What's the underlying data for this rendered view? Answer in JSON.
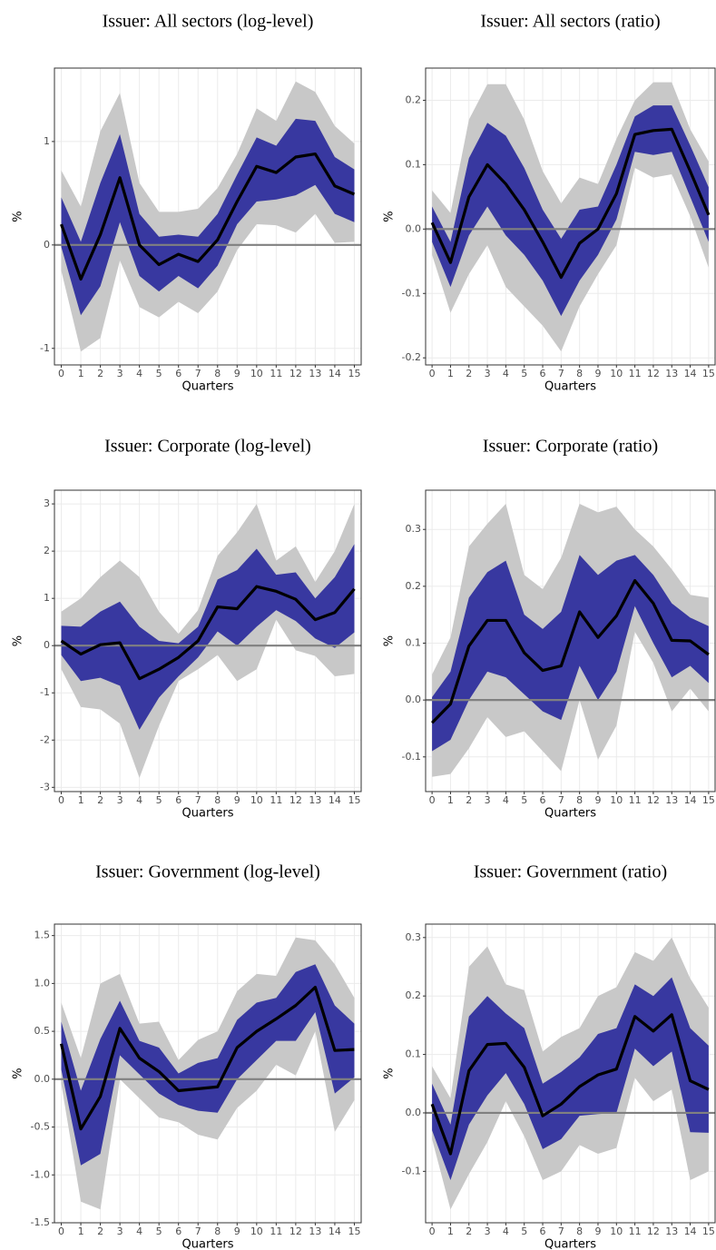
{
  "chart_data": [
    {
      "type": "line",
      "title": "Issuer:  All sectors (log-level)",
      "xlabel": "Quarters",
      "ylabel": "%",
      "x": [
        0,
        1,
        2,
        3,
        4,
        5,
        6,
        7,
        8,
        9,
        10,
        11,
        12,
        13,
        14,
        15
      ],
      "xlim": [
        -0.35,
        15.35
      ],
      "xticks": [
        0,
        1,
        2,
        3,
        4,
        5,
        6,
        7,
        8,
        9,
        10,
        11,
        12,
        13,
        14,
        15
      ],
      "ylim": [
        -1.16,
        1.71
      ],
      "yticks": [
        -1,
        0,
        1
      ],
      "grid": true,
      "hline": 0,
      "hline_color": "#808080",
      "bands": [
        {
          "color": "#c8c8c8",
          "lower": [
            -0.25,
            -1.03,
            -0.9,
            -0.15,
            -0.6,
            -0.7,
            -0.55,
            -0.66,
            -0.45,
            -0.05,
            0.2,
            0.19,
            0.12,
            0.3,
            0.02,
            0.03
          ],
          "upper": [
            0.72,
            0.37,
            1.1,
            1.47,
            0.6,
            0.32,
            0.32,
            0.35,
            0.55,
            0.88,
            1.32,
            1.2,
            1.58,
            1.48,
            1.15,
            0.98
          ]
        },
        {
          "color": "#3838a0",
          "lower": [
            -0.02,
            -0.68,
            -0.4,
            0.22,
            -0.3,
            -0.45,
            -0.3,
            -0.42,
            -0.2,
            0.2,
            0.42,
            0.44,
            0.48,
            0.58,
            0.3,
            0.22
          ],
          "upper": [
            0.46,
            0.03,
            0.6,
            1.07,
            0.3,
            0.08,
            0.1,
            0.08,
            0.3,
            0.68,
            1.04,
            0.96,
            1.22,
            1.2,
            0.85,
            0.73
          ]
        }
      ],
      "series": [
        {
          "color": "#000000",
          "values": [
            0.2,
            -0.33,
            0.1,
            0.65,
            0.0,
            -0.19,
            -0.09,
            -0.16,
            0.05,
            0.42,
            0.76,
            0.7,
            0.85,
            0.88,
            0.57,
            0.49
          ]
        }
      ]
    },
    {
      "type": "line",
      "title": "Issuer:  All sectors (ratio)",
      "xlabel": "Quarters",
      "ylabel": "%",
      "x": [
        0,
        1,
        2,
        3,
        4,
        5,
        6,
        7,
        8,
        9,
        10,
        11,
        12,
        13,
        14,
        15
      ],
      "xlim": [
        -0.35,
        15.35
      ],
      "xticks": [
        0,
        1,
        2,
        3,
        4,
        5,
        6,
        7,
        8,
        9,
        10,
        11,
        12,
        13,
        14,
        15
      ],
      "ylim": [
        -0.211,
        0.25
      ],
      "yticks": [
        -0.2,
        -0.1,
        {
          "value": 0,
          "label": "0.0"
        },
        0.1,
        0.2
      ],
      "grid": true,
      "hline": 0,
      "hline_color": "#808080",
      "bands": [
        {
          "color": "#c8c8c8",
          "lower": [
            -0.04,
            -0.13,
            -0.07,
            -0.025,
            -0.09,
            -0.12,
            -0.15,
            -0.19,
            -0.12,
            -0.07,
            -0.025,
            0.095,
            0.08,
            0.085,
            0.02,
            -0.06
          ],
          "upper": [
            0.06,
            0.025,
            0.17,
            0.225,
            0.225,
            0.17,
            0.09,
            0.04,
            0.08,
            0.07,
            0.14,
            0.2,
            0.228,
            0.228,
            0.155,
            0.105
          ]
        },
        {
          "color": "#3838a0",
          "lower": [
            -0.02,
            -0.09,
            -0.01,
            0.035,
            -0.01,
            -0.04,
            -0.08,
            -0.135,
            -0.08,
            -0.04,
            0.015,
            0.12,
            0.115,
            0.12,
            0.05,
            -0.02
          ],
          "upper": [
            0.035,
            -0.02,
            0.11,
            0.165,
            0.145,
            0.095,
            0.03,
            -0.015,
            0.03,
            0.035,
            0.1,
            0.175,
            0.192,
            0.192,
            0.13,
            0.065
          ]
        }
      ],
      "series": [
        {
          "color": "#000000",
          "values": [
            0.01,
            -0.052,
            0.05,
            0.1,
            0.07,
            0.03,
            -0.02,
            -0.075,
            -0.022,
            0.0,
            0.055,
            0.147,
            0.153,
            0.155,
            0.09,
            0.022
          ]
        }
      ]
    },
    {
      "type": "line",
      "title": "Issuer:  Corporate (log-level)",
      "xlabel": "Quarters",
      "ylabel": "%",
      "x": [
        0,
        1,
        2,
        3,
        4,
        5,
        6,
        7,
        8,
        9,
        10,
        11,
        12,
        13,
        14,
        15
      ],
      "xlim": [
        -0.35,
        15.35
      ],
      "xticks": [
        0,
        1,
        2,
        3,
        4,
        5,
        6,
        7,
        8,
        9,
        10,
        11,
        12,
        13,
        14,
        15
      ],
      "ylim": [
        -3.09,
        3.29
      ],
      "yticks": [
        -3,
        -2,
        -1,
        0,
        1,
        2,
        3
      ],
      "grid": true,
      "hline": 0,
      "hline_color": "#808080",
      "bands": [
        {
          "color": "#c8c8c8",
          "lower": [
            -0.5,
            -1.3,
            -1.35,
            -1.65,
            -2.8,
            -1.7,
            -0.75,
            -0.5,
            -0.2,
            -0.75,
            -0.5,
            0.55,
            -0.1,
            -0.22,
            -0.65,
            -0.6
          ],
          "upper": [
            0.72,
            1.0,
            1.45,
            1.8,
            1.45,
            0.72,
            0.25,
            0.75,
            1.9,
            2.4,
            3.0,
            1.8,
            2.1,
            1.35,
            2.0,
            3.0
          ]
        },
        {
          "color": "#3838a0",
          "lower": [
            -0.2,
            -0.75,
            -0.68,
            -0.85,
            -1.78,
            -1.1,
            -0.65,
            -0.25,
            0.3,
            0.0,
            0.4,
            0.75,
            0.52,
            0.15,
            -0.05,
            0.28
          ],
          "upper": [
            0.42,
            0.4,
            0.72,
            0.93,
            0.4,
            0.1,
            0.05,
            0.4,
            1.4,
            1.6,
            2.05,
            1.5,
            1.55,
            1.0,
            1.45,
            2.15
          ]
        }
      ],
      "series": [
        {
          "color": "#000000",
          "values": [
            0.1,
            -0.18,
            0.02,
            0.06,
            -0.7,
            -0.5,
            -0.25,
            0.1,
            0.82,
            0.78,
            1.25,
            1.15,
            0.98,
            0.55,
            0.7,
            1.2
          ]
        }
      ]
    },
    {
      "type": "line",
      "title": "Issuer:  Corporate (ratio)",
      "xlabel": "Quarters",
      "ylabel": "%",
      "x": [
        0,
        1,
        2,
        3,
        4,
        5,
        6,
        7,
        8,
        9,
        10,
        11,
        12,
        13,
        14,
        15
      ],
      "xlim": [
        -0.35,
        15.35
      ],
      "xticks": [
        0,
        1,
        2,
        3,
        4,
        5,
        6,
        7,
        8,
        9,
        10,
        11,
        12,
        13,
        14,
        15
      ],
      "ylim": [
        -0.161,
        0.369
      ],
      "yticks": [
        -0.1,
        {
          "value": 0,
          "label": "0.0"
        },
        0.1,
        0.2,
        0.3
      ],
      "grid": true,
      "hline": 0,
      "hline_color": "#808080",
      "bands": [
        {
          "color": "#c8c8c8",
          "lower": [
            -0.135,
            -0.13,
            -0.085,
            -0.03,
            -0.065,
            -0.055,
            -0.09,
            -0.125,
            0.0,
            -0.105,
            -0.045,
            0.12,
            0.065,
            -0.02,
            0.02,
            -0.02
          ],
          "upper": [
            0.045,
            0.11,
            0.27,
            0.31,
            0.345,
            0.22,
            0.195,
            0.25,
            0.345,
            0.33,
            0.34,
            0.3,
            0.27,
            0.23,
            0.185,
            0.18
          ]
        },
        {
          "color": "#3838a0",
          "lower": [
            -0.09,
            -0.07,
            0.0,
            0.05,
            0.04,
            0.01,
            -0.02,
            -0.035,
            0.06,
            0.0,
            0.05,
            0.165,
            0.1,
            0.04,
            0.06,
            0.03
          ],
          "upper": [
            0.005,
            0.05,
            0.18,
            0.225,
            0.245,
            0.15,
            0.125,
            0.155,
            0.255,
            0.22,
            0.245,
            0.255,
            0.22,
            0.17,
            0.145,
            0.13
          ]
        }
      ],
      "series": [
        {
          "color": "#000000",
          "values": [
            -0.04,
            -0.007,
            0.095,
            0.14,
            0.14,
            0.083,
            0.052,
            0.06,
            0.155,
            0.11,
            0.148,
            0.21,
            0.17,
            0.105,
            0.104,
            0.08
          ]
        }
      ]
    },
    {
      "type": "line",
      "title": "Issuer:  Government (log-level)",
      "xlabel": "Quarters",
      "ylabel": "%",
      "x": [
        0,
        1,
        2,
        3,
        4,
        5,
        6,
        7,
        8,
        9,
        10,
        11,
        12,
        13,
        14,
        15
      ],
      "xlim": [
        -0.35,
        15.35
      ],
      "xticks": [
        0,
        1,
        2,
        3,
        4,
        5,
        6,
        7,
        8,
        9,
        10,
        11,
        12,
        13,
        14,
        15
      ],
      "ylim": [
        -1.5,
        1.62
      ],
      "yticks": [
        -1.5,
        {
          "value": -1,
          "label": "-1.0"
        },
        -0.5,
        {
          "value": 0,
          "label": "0.0"
        },
        0.5,
        {
          "value": 1,
          "label": "1.0"
        },
        1.5
      ],
      "grid": true,
      "hline": 0,
      "hline_color": "#808080",
      "bands": [
        {
          "color": "#c8c8c8",
          "lower": [
            -0.05,
            -1.28,
            -1.36,
            0.0,
            -0.2,
            -0.4,
            -0.45,
            -0.58,
            -0.63,
            -0.3,
            -0.12,
            0.15,
            0.04,
            0.5,
            -0.55,
            -0.22
          ],
          "upper": [
            0.8,
            0.22,
            1.0,
            1.1,
            0.58,
            0.6,
            0.2,
            0.41,
            0.5,
            0.92,
            1.1,
            1.08,
            1.48,
            1.45,
            1.2,
            0.85
          ]
        },
        {
          "color": "#3838a0",
          "lower": [
            0.1,
            -0.9,
            -0.78,
            0.25,
            0.05,
            -0.15,
            -0.27,
            -0.33,
            -0.35,
            0.0,
            0.2,
            0.4,
            0.4,
            0.7,
            -0.15,
            0.02
          ],
          "upper": [
            0.6,
            -0.12,
            0.42,
            0.82,
            0.4,
            0.33,
            0.06,
            0.17,
            0.22,
            0.62,
            0.8,
            0.85,
            1.12,
            1.2,
            0.77,
            0.58
          ]
        }
      ],
      "series": [
        {
          "color": "#000000",
          "values": [
            0.37,
            -0.52,
            -0.18,
            0.53,
            0.22,
            0.08,
            -0.12,
            -0.1,
            -0.08,
            0.33,
            0.5,
            0.63,
            0.77,
            0.96,
            0.3,
            0.31
          ]
        }
      ]
    },
    {
      "type": "line",
      "title": "Issuer:  Government (ratio)",
      "xlabel": "Quarters",
      "ylabel": "%",
      "x": [
        0,
        1,
        2,
        3,
        4,
        5,
        6,
        7,
        8,
        9,
        10,
        11,
        12,
        13,
        14,
        15
      ],
      "xlim": [
        -0.35,
        15.35
      ],
      "xticks": [
        0,
        1,
        2,
        3,
        4,
        5,
        6,
        7,
        8,
        9,
        10,
        11,
        12,
        13,
        14,
        15
      ],
      "ylim": [
        -0.188,
        0.323
      ],
      "yticks": [
        -0.1,
        {
          "value": 0,
          "label": "0.0"
        },
        0.1,
        0.2,
        0.3
      ],
      "grid": true,
      "hline": 0,
      "hline_color": "#808080",
      "bands": [
        {
          "color": "#c8c8c8",
          "lower": [
            -0.045,
            -0.165,
            -0.105,
            -0.05,
            0.02,
            -0.04,
            -0.115,
            -0.1,
            -0.055,
            -0.07,
            -0.06,
            0.06,
            0.02,
            0.04,
            -0.115,
            -0.1
          ],
          "upper": [
            0.08,
            0.025,
            0.25,
            0.285,
            0.22,
            0.21,
            0.105,
            0.13,
            0.145,
            0.2,
            0.215,
            0.275,
            0.26,
            0.3,
            0.23,
            0.18
          ]
        },
        {
          "color": "#3838a0",
          "lower": [
            -0.03,
            -0.115,
            -0.02,
            0.03,
            0.068,
            0.015,
            -0.062,
            -0.045,
            -0.005,
            -0.002,
            0.0,
            0.11,
            0.08,
            0.105,
            -0.033,
            -0.034
          ],
          "upper": [
            0.05,
            -0.02,
            0.165,
            0.2,
            0.17,
            0.145,
            0.05,
            0.07,
            0.095,
            0.135,
            0.145,
            0.22,
            0.2,
            0.232,
            0.145,
            0.115
          ]
        }
      ],
      "series": [
        {
          "color": "#000000",
          "values": [
            0.015,
            -0.07,
            0.072,
            0.117,
            0.119,
            0.078,
            -0.005,
            0.015,
            0.045,
            0.065,
            0.075,
            0.165,
            0.14,
            0.168,
            0.055,
            0.04
          ]
        }
      ]
    }
  ]
}
